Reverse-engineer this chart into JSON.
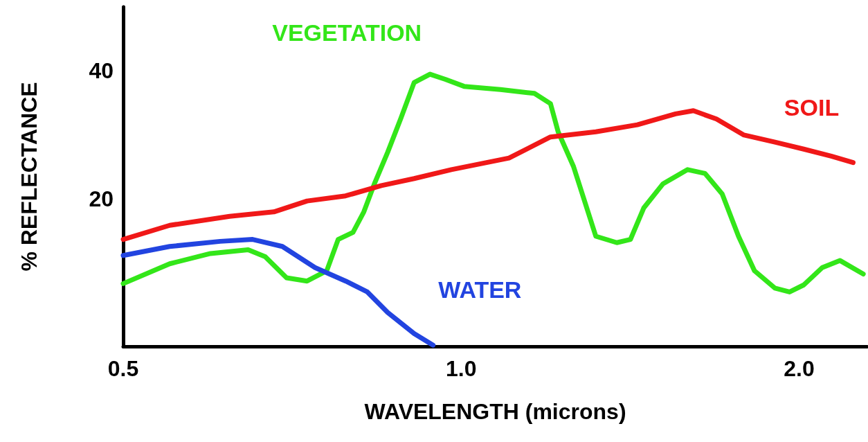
{
  "chart_data": {
    "type": "line",
    "xlabel": "WAVELENGTH (microns)",
    "ylabel": "% REFLECTANCE",
    "log": "x",
    "xlim": [
      0.5,
      2.3
    ],
    "xticks": [
      0.5,
      {
        "value": 1,
        "label": "1.0"
      },
      {
        "value": 2,
        "label": "2.0"
      }
    ],
    "ylim": [
      -3,
      50
    ],
    "yticks": [
      20,
      40
    ],
    "grid": false,
    "legend": false,
    "marker": "none",
    "line_style": "solid",
    "series": [
      {
        "name": "VEGETATION",
        "color": "#33e619",
        "x": [
          0.5,
          0.55,
          0.598,
          0.646,
          0.669,
          0.699,
          0.729,
          0.759,
          0.777,
          0.801,
          0.819,
          0.837,
          0.86,
          0.884,
          0.908,
          0.938,
          0.968,
          1.006,
          1.084,
          1.162,
          1.201,
          1.22,
          1.259,
          1.318,
          1.376,
          1.415,
          1.454,
          1.513,
          1.591,
          1.649,
          1.708,
          1.766,
          1.825,
          1.903,
          1.961,
          2.019,
          2.097,
          2.175,
          2.281
        ],
        "values": [
          6.8,
          9.9,
          11.5,
          12.1,
          11.0,
          7.7,
          7.2,
          8.8,
          13.7,
          14.8,
          18.0,
          22.4,
          27.3,
          32.7,
          38.2,
          39.5,
          38.7,
          37.6,
          37.1,
          36.5,
          34.9,
          30.5,
          25.1,
          14.2,
          13.2,
          13.7,
          18.6,
          22.4,
          24.6,
          24.0,
          20.8,
          14.2,
          8.8,
          6.1,
          5.5,
          6.6,
          9.3,
          10.4,
          8.3
        ]
      },
      {
        "name": "SOIL",
        "color": "#f01818",
        "x": [
          0.5,
          0.55,
          0.622,
          0.681,
          0.729,
          0.789,
          0.849,
          0.908,
          0.98,
          1.103,
          1.201,
          1.318,
          1.435,
          1.552,
          1.61,
          1.688,
          1.786,
          1.903,
          2.019,
          2.136,
          2.234
        ],
        "values": [
          13.7,
          15.9,
          17.3,
          18.0,
          19.7,
          20.5,
          22.1,
          23.2,
          24.6,
          26.4,
          29.7,
          30.5,
          31.6,
          33.3,
          33.8,
          32.5,
          30.0,
          28.9,
          27.8,
          26.7,
          25.7
        ]
      },
      {
        "name": "WATER",
        "color": "#2244e0",
        "x": [
          0.5,
          0.55,
          0.61,
          0.652,
          0.693,
          0.741,
          0.789,
          0.825,
          0.86,
          0.908,
          0.944
        ],
        "values": [
          11.2,
          12.6,
          13.4,
          13.7,
          12.6,
          9.3,
          7.2,
          5.5,
          2.3,
          -1.0,
          -2.8
        ]
      }
    ]
  }
}
